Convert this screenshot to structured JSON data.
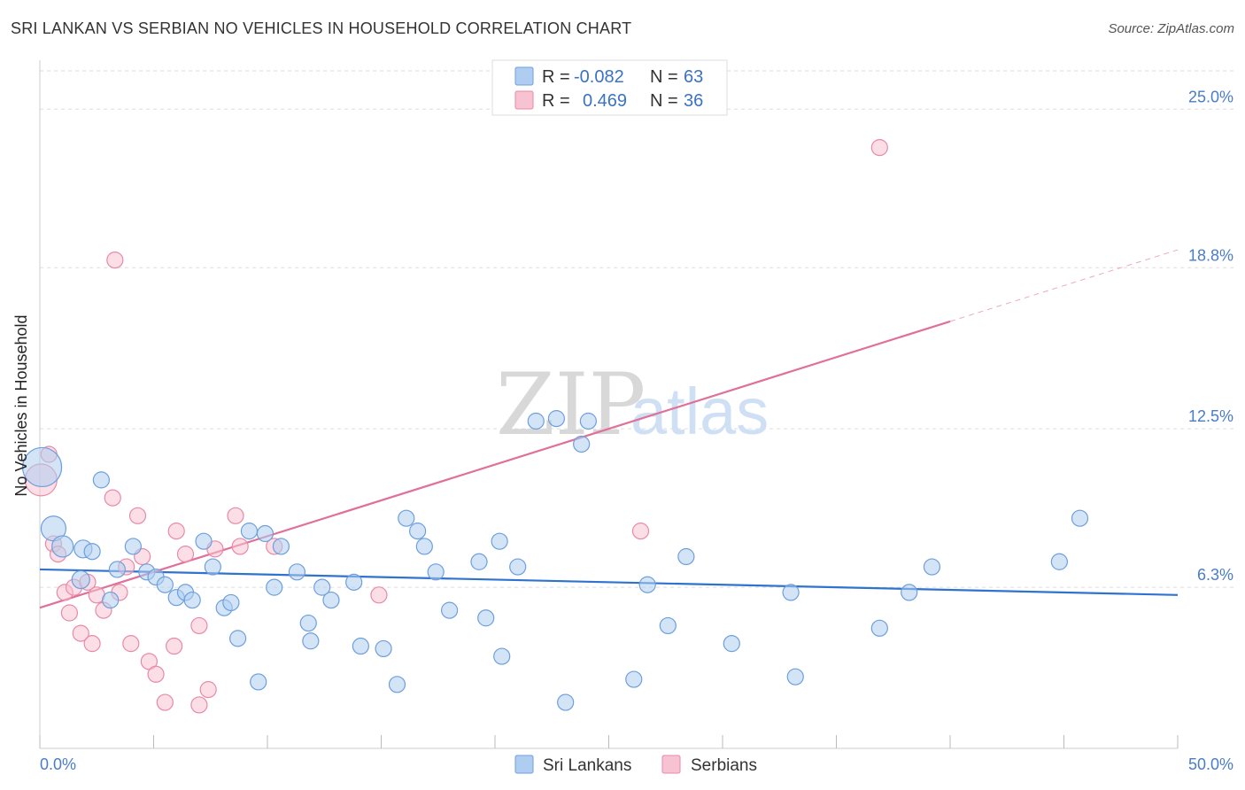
{
  "header": {
    "title": "SRI LANKAN VS SERBIAN NO VEHICLES IN HOUSEHOLD CORRELATION CHART",
    "source": "Source: ZipAtlas.com"
  },
  "watermark": {
    "zip": "ZIP",
    "atlas": "atlas"
  },
  "legend_top": [
    {
      "r_label": "R =",
      "r_value": "-0.082",
      "n_label": "N =",
      "n_value": "63"
    },
    {
      "r_label": "R =",
      "r_value": "0.469",
      "n_label": "N =",
      "n_value": "36"
    }
  ],
  "colors": {
    "blue_fill": "#aecdf0",
    "blue_stroke": "#6d9fdc",
    "blue_line": "#2f72cf",
    "pink_fill": "#f7c3d2",
    "pink_stroke": "#e88aa6",
    "pink_line": "#e0709a",
    "grid": "#dddddd",
    "axis_label": "#4a7cc9"
  },
  "chart_data": {
    "type": "scatter",
    "title": "SRI LANKAN VS SERBIAN NO VEHICLES IN HOUSEHOLD CORRELATION CHART",
    "xlabel": "",
    "ylabel": "No Vehicles in Household",
    "xlim": [
      0,
      50
    ],
    "ylim": [
      0,
      26.5
    ],
    "x_tick_labels": [
      "0.0%",
      "50.0%"
    ],
    "y_ticks": [
      6.3,
      12.5,
      18.8,
      25.0
    ],
    "y_tick_labels": [
      "6.3%",
      "12.5%",
      "18.8%",
      "25.0%"
    ],
    "legend": [
      "Sri Lankans",
      "Serbians"
    ],
    "series": [
      {
        "name": "Sri Lankans",
        "r": -0.082,
        "n": 63,
        "trend": {
          "x0": 0,
          "y0": 7.0,
          "x1": 50,
          "y1": 6.0,
          "dash_from_x": null
        },
        "points": [
          [
            0.1,
            11.0,
            22
          ],
          [
            0.6,
            8.6,
            14
          ],
          [
            1.0,
            7.9,
            12
          ],
          [
            1.8,
            6.6,
            10
          ],
          [
            1.9,
            7.8,
            10
          ],
          [
            2.3,
            7.7,
            9
          ],
          [
            2.7,
            10.5,
            9
          ],
          [
            3.1,
            5.8,
            9
          ],
          [
            3.4,
            7.0,
            9
          ],
          [
            4.1,
            7.9,
            9
          ],
          [
            4.7,
            6.9,
            9
          ],
          [
            5.1,
            6.7,
            9
          ],
          [
            5.5,
            6.4,
            9
          ],
          [
            6.0,
            5.9,
            9
          ],
          [
            6.4,
            6.1,
            9
          ],
          [
            6.7,
            5.8,
            9
          ],
          [
            7.2,
            8.1,
            9
          ],
          [
            7.6,
            7.1,
            9
          ],
          [
            8.1,
            5.5,
            9
          ],
          [
            8.4,
            5.7,
            9
          ],
          [
            8.7,
            4.3,
            9
          ],
          [
            9.2,
            8.5,
            9
          ],
          [
            9.6,
            2.6,
            9
          ],
          [
            9.9,
            8.4,
            9
          ],
          [
            10.3,
            6.3,
            9
          ],
          [
            10.6,
            7.9,
            9
          ],
          [
            11.3,
            6.9,
            9
          ],
          [
            11.8,
            4.9,
            9
          ],
          [
            11.9,
            4.2,
            9
          ],
          [
            12.4,
            6.3,
            9
          ],
          [
            12.8,
            5.8,
            9
          ],
          [
            13.8,
            6.5,
            9
          ],
          [
            14.1,
            4.0,
            9
          ],
          [
            15.1,
            3.9,
            9
          ],
          [
            15.7,
            2.5,
            9
          ],
          [
            16.1,
            9.0,
            9
          ],
          [
            16.6,
            8.5,
            9
          ],
          [
            16.9,
            7.9,
            9
          ],
          [
            17.4,
            6.9,
            9
          ],
          [
            18.0,
            5.4,
            9
          ],
          [
            19.3,
            7.3,
            9
          ],
          [
            19.6,
            5.1,
            9
          ],
          [
            20.2,
            8.1,
            9
          ],
          [
            20.3,
            3.6,
            9
          ],
          [
            21.0,
            7.1,
            9
          ],
          [
            21.8,
            12.8,
            9
          ],
          [
            22.7,
            12.9,
            9
          ],
          [
            23.1,
            1.8,
            9
          ],
          [
            23.8,
            11.9,
            9
          ],
          [
            24.1,
            12.8,
            9
          ],
          [
            26.1,
            2.7,
            9
          ],
          [
            26.7,
            6.4,
            9
          ],
          [
            27.6,
            4.8,
            9
          ],
          [
            28.4,
            7.5,
            9
          ],
          [
            30.4,
            4.1,
            9
          ],
          [
            33.0,
            6.1,
            9
          ],
          [
            33.2,
            2.8,
            9
          ],
          [
            36.9,
            4.7,
            9
          ],
          [
            38.2,
            6.1,
            9
          ],
          [
            39.2,
            7.1,
            9
          ],
          [
            44.8,
            7.3,
            9
          ],
          [
            45.7,
            9.0,
            9
          ]
        ]
      },
      {
        "name": "Serbians",
        "r": 0.469,
        "n": 36,
        "trend": {
          "x0": 0,
          "y0": 5.5,
          "x1": 50,
          "y1": 19.5,
          "dash_from_x": 40
        },
        "points": [
          [
            0.05,
            10.5,
            18
          ],
          [
            0.4,
            11.5,
            9
          ],
          [
            0.6,
            8.0,
            9
          ],
          [
            0.8,
            7.6,
            9
          ],
          [
            1.1,
            6.1,
            9
          ],
          [
            1.3,
            5.3,
            9
          ],
          [
            1.5,
            6.3,
            9
          ],
          [
            1.8,
            4.5,
            9
          ],
          [
            2.1,
            6.5,
            9
          ],
          [
            2.3,
            4.1,
            9
          ],
          [
            2.5,
            6.0,
            9
          ],
          [
            2.8,
            5.4,
            9
          ],
          [
            3.2,
            9.8,
            9
          ],
          [
            3.3,
            19.1,
            9
          ],
          [
            3.5,
            6.1,
            9
          ],
          [
            3.8,
            7.1,
            9
          ],
          [
            4.0,
            4.1,
            9
          ],
          [
            4.3,
            9.1,
            9
          ],
          [
            4.5,
            7.5,
            9
          ],
          [
            4.8,
            3.4,
            9
          ],
          [
            5.1,
            2.9,
            9
          ],
          [
            5.5,
            1.8,
            9
          ],
          [
            5.9,
            4.0,
            9
          ],
          [
            6.0,
            8.5,
            9
          ],
          [
            6.4,
            7.6,
            9
          ],
          [
            7.0,
            4.8,
            9
          ],
          [
            7.0,
            1.7,
            9
          ],
          [
            7.4,
            2.3,
            9
          ],
          [
            7.7,
            7.8,
            9
          ],
          [
            8.6,
            9.1,
            9
          ],
          [
            8.8,
            7.9,
            9
          ],
          [
            10.3,
            7.9,
            9
          ],
          [
            14.9,
            6.0,
            9
          ],
          [
            26.4,
            8.5,
            9
          ],
          [
            36.9,
            23.5,
            9
          ]
        ]
      }
    ]
  }
}
